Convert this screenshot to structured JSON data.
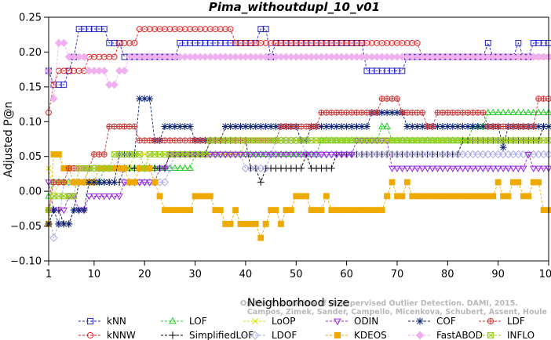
{
  "chart_data": {
    "type": "line",
    "title": "Pima_withoutdupl_10_v01",
    "xlabel": "Neighborhood size",
    "ylabel": "Adjusted P@n",
    "xlim": [
      1,
      100
    ],
    "ylim": [
      -0.1,
      0.25
    ],
    "xticks": [
      1,
      10,
      20,
      30,
      40,
      50,
      60,
      70,
      80,
      90,
      100
    ],
    "yticks": [
      -0.1,
      -0.05,
      0.0,
      0.05,
      0.1,
      0.15,
      0.2,
      0.25
    ],
    "ytick_labels": [
      "−0.10",
      "−0.05",
      "0.00",
      "0.05",
      "0.10",
      "0.15",
      "0.20",
      "0.25"
    ],
    "grid": false,
    "legend_position": "bottom",
    "watermark": [
      "Campos, Zimek, Sander, Campello, Micenkova, Schubert, Assent, Houle",
      "On the Evaluation of Unsupervised Outlier Detection. DAMI, 2015."
    ],
    "series": [
      {
        "name": "kNN",
        "color": "#2222cc",
        "marker": "square",
        "points": [
          [
            1,
            0.173
          ],
          [
            2,
            0.153
          ],
          [
            5,
            0.173
          ],
          [
            6,
            0.193
          ],
          [
            7,
            0.233
          ],
          [
            13,
            0.213
          ],
          [
            16,
            0.193
          ],
          [
            27,
            0.213
          ],
          [
            43,
            0.233
          ],
          [
            45,
            0.193
          ],
          [
            46,
            0.213
          ],
          [
            64,
            0.173
          ],
          [
            72,
            0.193
          ],
          [
            88,
            0.213
          ],
          [
            89,
            0.193
          ],
          [
            94,
            0.213
          ],
          [
            95,
            0.193
          ],
          [
            97,
            0.213
          ],
          [
            100,
            0.213
          ]
        ]
      },
      {
        "name": "kNNW",
        "color": "#dd2222",
        "marker": "circle",
        "points": [
          [
            1,
            0.113
          ],
          [
            2,
            0.153
          ],
          [
            3,
            0.173
          ],
          [
            8,
            0.173
          ],
          [
            9,
            0.193
          ],
          [
            15,
            0.213
          ],
          [
            19,
            0.233
          ],
          [
            38,
            0.213
          ],
          [
            75,
            0.193
          ],
          [
            100,
            0.193
          ]
        ]
      },
      {
        "name": "LOF",
        "color": "#22cc22",
        "marker": "triangle-up",
        "points": [
          [
            1,
            -0.007
          ],
          [
            2,
            0.013
          ],
          [
            9,
            0.013
          ],
          [
            12,
            0.033
          ],
          [
            25,
            0.033
          ],
          [
            30,
            0.053
          ],
          [
            55,
            0.073
          ],
          [
            67,
            0.093
          ],
          [
            69,
            0.073
          ],
          [
            85,
            0.093
          ],
          [
            88,
            0.113
          ],
          [
            100,
            0.113
          ]
        ]
      },
      {
        "name": "SimplifiedLOF",
        "color": "#000000",
        "marker": "plus",
        "points": [
          [
            1,
            -0.047
          ],
          [
            2,
            -0.027
          ],
          [
            4,
            -0.047
          ],
          [
            6,
            -0.027
          ],
          [
            7,
            0.013
          ],
          [
            15,
            0.013
          ],
          [
            16,
            0.033
          ],
          [
            25,
            0.053
          ],
          [
            33,
            0.073
          ],
          [
            41,
            0.033
          ],
          [
            43,
            0.013
          ],
          [
            44,
            0.033
          ],
          [
            52,
            0.053
          ],
          [
            53,
            0.033
          ],
          [
            58,
            0.053
          ],
          [
            68,
            0.053
          ],
          [
            69,
            0.053
          ],
          [
            83,
            0.073
          ],
          [
            99,
            0.093
          ],
          [
            100,
            0.093
          ]
        ]
      },
      {
        "name": "LoOP",
        "color": "#dddd00",
        "marker": "cross",
        "points": [
          [
            1,
            0.033
          ],
          [
            2,
            -0.007
          ],
          [
            3,
            0.013
          ],
          [
            8,
            0.013
          ],
          [
            9,
            0.033
          ],
          [
            18,
            0.053
          ],
          [
            40,
            0.073
          ],
          [
            100,
            0.073
          ]
        ]
      },
      {
        "name": "LDOF",
        "color": "#a8a8e8",
        "marker": "diamond",
        "points": [
          [
            1,
            -0.027
          ],
          [
            2,
            -0.067
          ],
          [
            3,
            -0.047
          ],
          [
            4,
            0.013
          ],
          [
            9,
            0.033
          ],
          [
            16,
            0.013
          ],
          [
            25,
            0.033
          ],
          [
            26,
            0.053
          ],
          [
            40,
            0.033
          ],
          [
            45,
            0.053
          ],
          [
            46,
            0.073
          ],
          [
            52,
            0.053
          ],
          [
            100,
            0.053
          ]
        ]
      },
      {
        "name": "ODIN",
        "color": "#9922dd",
        "marker": "triangle-down",
        "points": [
          [
            1,
            0.013
          ],
          [
            2,
            -0.027
          ],
          [
            5,
            -0.007
          ],
          [
            7,
            -0.027
          ],
          [
            9,
            -0.007
          ],
          [
            16,
            0.013
          ],
          [
            23,
            0.033
          ],
          [
            25,
            0.053
          ],
          [
            50,
            0.053
          ],
          [
            62,
            0.073
          ],
          [
            69,
            0.033
          ],
          [
            96,
            0.053
          ],
          [
            97,
            0.033
          ],
          [
            100,
            0.033
          ]
        ]
      },
      {
        "name": "KDEOS",
        "color": "#eeaa00",
        "marker": "square-filled",
        "points": [
          [
            1,
            -0.047
          ],
          [
            2,
            0.053
          ],
          [
            4,
            0.033
          ],
          [
            6,
            0.013
          ],
          [
            10,
            0.013
          ],
          [
            11,
            0.033
          ],
          [
            17,
            0.013
          ],
          [
            19,
            0.033
          ],
          [
            22,
            0.013
          ],
          [
            23,
            -0.007
          ],
          [
            24,
            -0.027
          ],
          [
            30,
            -0.007
          ],
          [
            34,
            -0.027
          ],
          [
            36,
            -0.047
          ],
          [
            38,
            -0.027
          ],
          [
            39,
            -0.047
          ],
          [
            43,
            -0.067
          ],
          [
            44,
            -0.047
          ],
          [
            45,
            -0.027
          ],
          [
            47,
            -0.047
          ],
          [
            48,
            -0.027
          ],
          [
            50,
            -0.007
          ],
          [
            53,
            -0.027
          ],
          [
            56,
            -0.007
          ],
          [
            57,
            -0.027
          ],
          [
            68,
            -0.007
          ],
          [
            69,
            0.013
          ],
          [
            70,
            -0.007
          ],
          [
            72,
            0.013
          ],
          [
            73,
            -0.007
          ],
          [
            90,
            0.013
          ],
          [
            91,
            -0.007
          ],
          [
            93,
            0.013
          ],
          [
            95,
            -0.007
          ],
          [
            97,
            0.013
          ],
          [
            99,
            -0.027
          ],
          [
            100,
            -0.027
          ]
        ]
      },
      {
        "name": "COF",
        "color": "#0b2277",
        "marker": "star",
        "points": [
          [
            1,
            -0.047
          ],
          [
            2,
            -0.027
          ],
          [
            3,
            -0.047
          ],
          [
            6,
            -0.027
          ],
          [
            9,
            0.013
          ],
          [
            15,
            0.053
          ],
          [
            19,
            0.133
          ],
          [
            22,
            0.073
          ],
          [
            24,
            0.093
          ],
          [
            30,
            0.073
          ],
          [
            36,
            0.093
          ],
          [
            51,
            0.073
          ],
          [
            53,
            0.093
          ],
          [
            65,
            0.113
          ],
          [
            72,
            0.093
          ],
          [
            89,
            0.093
          ],
          [
            91,
            0.063
          ],
          [
            92,
            0.093
          ],
          [
            100,
            0.093
          ]
        ]
      },
      {
        "name": "FastABOD",
        "color": "#f0b0f0",
        "marker": "diamond-filled",
        "points": [
          [
            1,
            0.173
          ],
          [
            2,
            0.133
          ],
          [
            3,
            0.213
          ],
          [
            5,
            0.193
          ],
          [
            9,
            0.173
          ],
          [
            13,
            0.153
          ],
          [
            15,
            0.173
          ],
          [
            17,
            0.193
          ],
          [
            100,
            0.193
          ]
        ]
      },
      {
        "name": "LDF",
        "color": "#cc3333",
        "marker": "circle-plus",
        "points": [
          [
            1,
            -0.027
          ],
          [
            2,
            0.013
          ],
          [
            5,
            0.033
          ],
          [
            10,
            0.053
          ],
          [
            13,
            0.093
          ],
          [
            17,
            0.093
          ],
          [
            19,
            0.073
          ],
          [
            28,
            0.073
          ],
          [
            47,
            0.093
          ],
          [
            55,
            0.113
          ],
          [
            67,
            0.133
          ],
          [
            71,
            0.113
          ],
          [
            76,
            0.093
          ],
          [
            78,
            0.113
          ],
          [
            88,
            0.093
          ],
          [
            98,
            0.133
          ],
          [
            100,
            0.133
          ]
        ]
      },
      {
        "name": "INFLO",
        "color": "#99cc22",
        "marker": "square-x",
        "points": [
          [
            1,
            -0.027
          ],
          [
            2,
            -0.007
          ],
          [
            7,
            0.033
          ],
          [
            14,
            0.053
          ],
          [
            20,
            0.033
          ],
          [
            21,
            0.053
          ],
          [
            33,
            0.073
          ],
          [
            100,
            0.073
          ]
        ]
      }
    ]
  }
}
